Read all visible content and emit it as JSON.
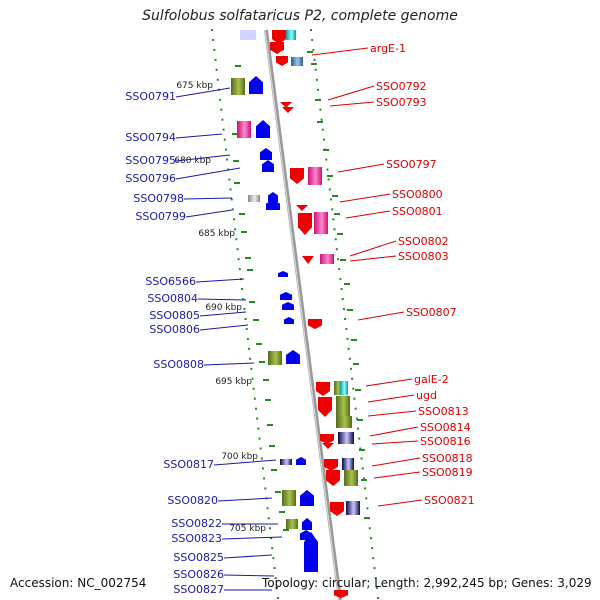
{
  "title": "Sulfolobus solfataricus P2, complete genome",
  "accession": "Accession: NC_002754",
  "topology": "Topology: circular; Length: 2,992,245 bp; Genes: 3,029",
  "colors": {
    "plus_strand": "#0000ee",
    "minus_strand": "#ee0000",
    "olive": "#6b8e23",
    "magenta": "#ee3399",
    "cyan": "#22cccc",
    "steel": "#4682b4",
    "navy": "#101060",
    "scale_tick": "#228b22",
    "backbone": "#999999",
    "label_left": "#1a1aaa",
    "label_right": "#dd0000"
  },
  "scale_labels": [
    "675 kbp",
    "680 kbp",
    "685 kbp",
    "690 kbp",
    "695 kbp",
    "700 kbp",
    "705 kbp"
  ],
  "left_genes": [
    "SSO0791",
    "SSO0794",
    "SSO0795",
    "SSO0796",
    "SSO0798",
    "SSO0799",
    "SSO6566",
    "SSO0804",
    "SSO0805",
    "SSO0806",
    "SSO0808",
    "SSO0817",
    "SSO0820",
    "SSO0822",
    "SSO0823",
    "SSO0825",
    "SSO0826",
    "SSO0827"
  ],
  "right_genes": [
    "argE-1",
    "SSO0792",
    "SSO0793",
    "SSO0797",
    "SSO0800",
    "SSO0801",
    "SSO0802",
    "SSO0803",
    "SSO0807",
    "galE-2",
    "ugd",
    "SSO0813",
    "SSO0814",
    "SSO0816",
    "SSO0818",
    "SSO0819",
    "SSO0821"
  ]
}
